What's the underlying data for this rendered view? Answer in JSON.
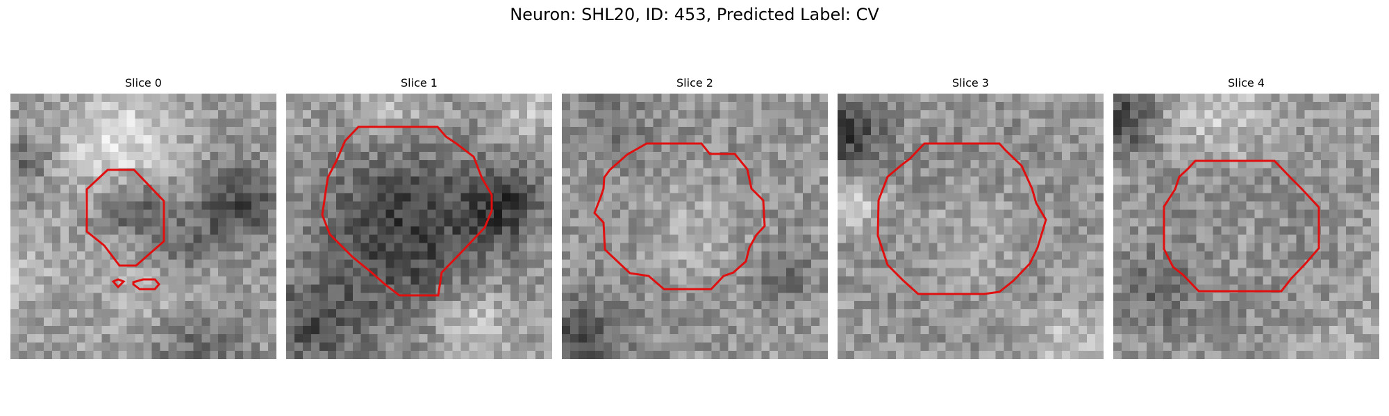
{
  "figure": {
    "title": "Neuron: SHL20, ID: 453, Predicted Label: CV"
  },
  "panels": [
    {
      "title": "Slice 0"
    },
    {
      "title": "Slice 1"
    },
    {
      "title": "Slice 2"
    },
    {
      "title": "Slice 3"
    },
    {
      "title": "Slice 4"
    }
  ],
  "colors": {
    "contour": "#e01010",
    "background": "#ffffff"
  }
}
